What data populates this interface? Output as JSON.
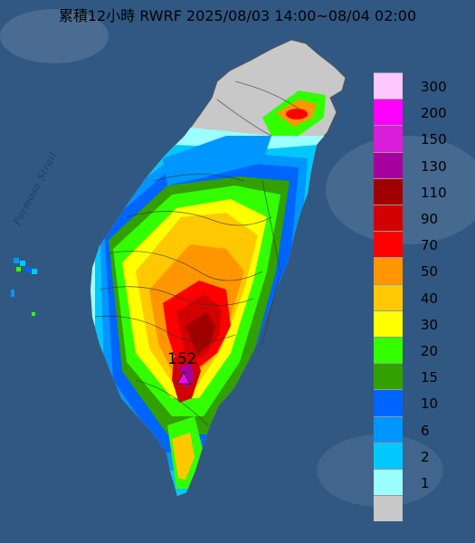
{
  "title": "累積12小時 RWRF 2025/08/03 14:00~08/04 02:00",
  "strait_label": "Formosa Strait",
  "peak": {
    "value": "152"
  },
  "legend": {
    "levels": [
      {
        "label": "300",
        "color": "#ffc8ff"
      },
      {
        "label": "200",
        "color": "#ff00ff"
      },
      {
        "label": "150",
        "color": "#d81ed8"
      },
      {
        "label": "130",
        "color": "#a6009f"
      },
      {
        "label": "110",
        "color": "#a00000"
      },
      {
        "label": "90",
        "color": "#d20000"
      },
      {
        "label": "70",
        "color": "#ff0000"
      },
      {
        "label": "50",
        "color": "#ff9600"
      },
      {
        "label": "40",
        "color": "#ffc800"
      },
      {
        "label": "30",
        "color": "#ffff00"
      },
      {
        "label": "20",
        "color": "#32ff00"
      },
      {
        "label": "15",
        "color": "#32a000"
      },
      {
        "label": "10",
        "color": "#0064ff"
      },
      {
        "label": "6",
        "color": "#0096ff"
      },
      {
        "label": "2",
        "color": "#00c8ff"
      },
      {
        "label": "1",
        "color": "#9bffff"
      },
      {
        "label": "",
        "color": "#c8c8c8"
      }
    ]
  },
  "colors": {
    "sea": "#2b4f78",
    "land_dry": "#c8c8c8",
    "peak_marker": "#ff00ff"
  }
}
